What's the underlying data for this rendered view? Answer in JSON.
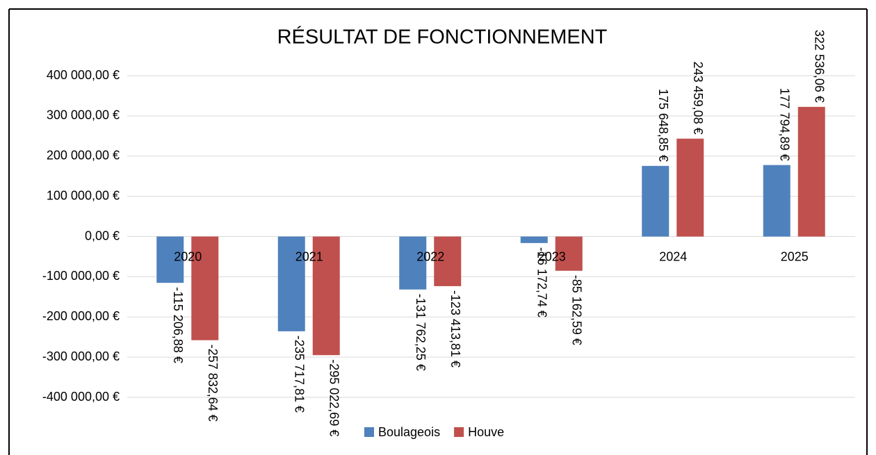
{
  "chart_data": {
    "type": "bar",
    "title": "RÉSULTAT DE FONCTIONNEMENT",
    "categories": [
      "2020",
      "2021",
      "2022",
      "2023",
      "2024",
      "2025"
    ],
    "series": [
      {
        "name": "Boulageois",
        "color": "#4f81bd",
        "values": [
          -115206.88,
          -235717.81,
          -131762.25,
          -16172.74,
          175648.85,
          177794.89
        ],
        "value_labels": [
          "-115 206,88 €",
          "-235 717,81 €",
          "-131 762,25 €",
          "-16 172,74 €",
          "175 648,85 €",
          "177 794,89 €"
        ]
      },
      {
        "name": "Houve",
        "color": "#c0504d",
        "values": [
          -257832.64,
          -295022.69,
          -123413.81,
          -85162.59,
          243459.08,
          322536.06
        ],
        "value_labels": [
          "-257 832,64 €",
          "-295 022,69 €",
          "-123 413,81 €",
          "-85 162,59 €",
          "243 459,08 €",
          "322 536,06 €"
        ]
      }
    ],
    "ylim": [
      -400000,
      400000
    ],
    "yticks": [
      {
        "value": -400000,
        "label": "-400 000,00 €"
      },
      {
        "value": -300000,
        "label": "-300 000,00 €"
      },
      {
        "value": -200000,
        "label": "-200 000,00 €"
      },
      {
        "value": -100000,
        "label": "-100 000,00 €"
      },
      {
        "value": 0,
        "label": "0,00 €"
      },
      {
        "value": 100000,
        "label": "100 000,00 €"
      },
      {
        "value": 200000,
        "label": "200 000,00 €"
      },
      {
        "value": 300000,
        "label": "300 000,00 €"
      },
      {
        "value": 400000,
        "label": "400 000,00 €"
      }
    ],
    "grid": true,
    "legend": "bottom"
  }
}
